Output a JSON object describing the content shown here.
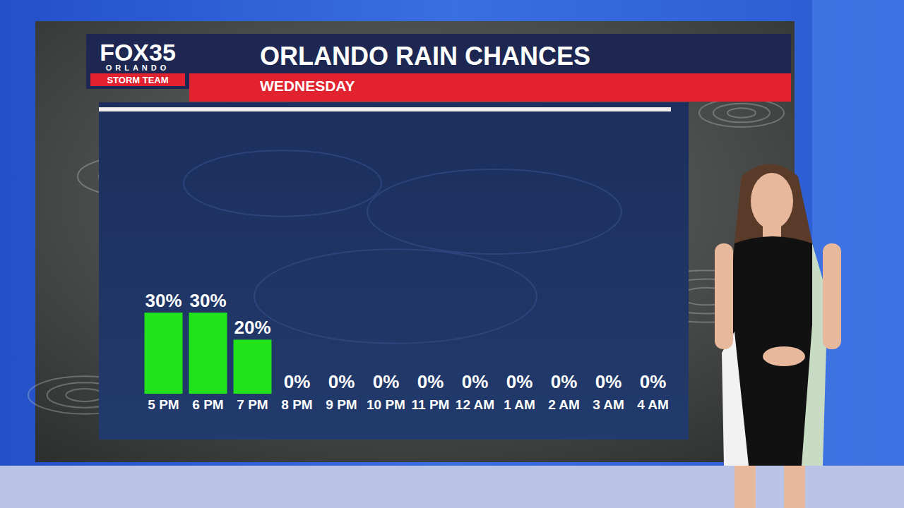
{
  "chart_data": {
    "type": "bar",
    "title": "ORLANDO RAIN CHANCES",
    "subtitle": "WEDNESDAY",
    "annotations": [
      "FOX35",
      "ORLANDO",
      "STORM TEAM"
    ],
    "categories": [
      "5 PM",
      "6 PM",
      "7 PM",
      "8 PM",
      "9 PM",
      "10 PM",
      "11 PM",
      "12 AM",
      "1 AM",
      "2 AM",
      "3 AM",
      "4 AM"
    ],
    "values": [
      30,
      30,
      20,
      0,
      0,
      0,
      0,
      0,
      0,
      0,
      0,
      0
    ],
    "value_labels": [
      "30%",
      "30%",
      "20%",
      "0%",
      "0%",
      "0%",
      "0%",
      "0%",
      "0%",
      "0%",
      "0%",
      "0%"
    ],
    "color": "#21e21b",
    "ylim": [
      0,
      100
    ],
    "data_labels": true,
    "tick_labels": "x",
    "grid": false
  }
}
